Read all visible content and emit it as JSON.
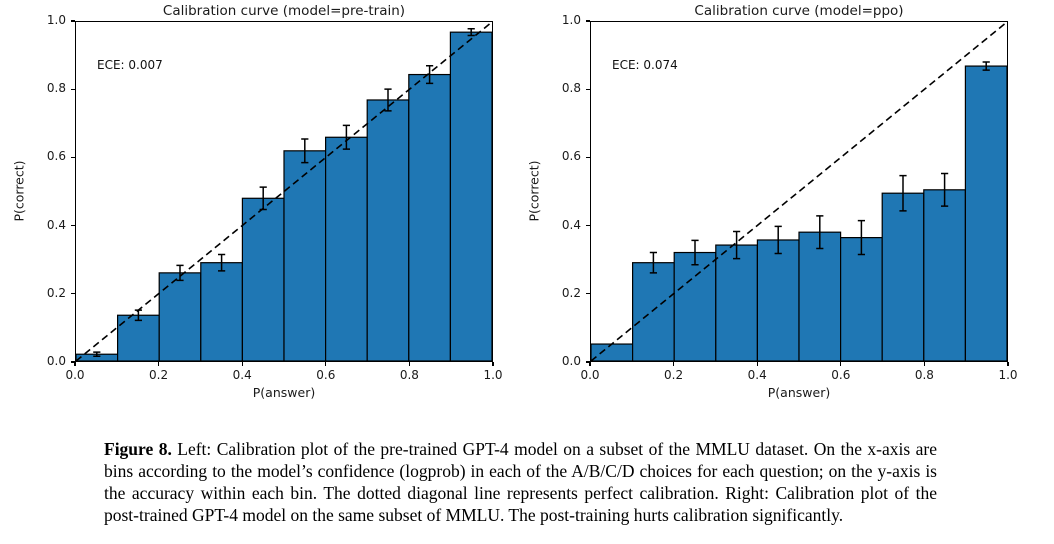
{
  "chart_data": [
    {
      "type": "bar",
      "title": "Calibration curve (model=pre-train)",
      "annotation": "ECE: 0.007",
      "xlabel": "P(answer)",
      "ylabel": "P(correct)",
      "xlim": [
        0.0,
        1.0
      ],
      "ylim": [
        0.0,
        1.0
      ],
      "xticks": [
        "0.0",
        "0.2",
        "0.4",
        "0.6",
        "0.8",
        "1.0"
      ],
      "yticks": [
        "0.0",
        "0.2",
        "0.4",
        "0.6",
        "0.8",
        "1.0"
      ],
      "bin_edges": [
        0.0,
        0.1,
        0.2,
        0.3,
        0.4,
        0.5,
        0.6,
        0.7,
        0.8,
        0.9,
        1.0
      ],
      "values": [
        0.02,
        0.135,
        0.26,
        0.29,
        0.48,
        0.62,
        0.66,
        0.77,
        0.845,
        0.97
      ],
      "errors": [
        0.006,
        0.015,
        0.022,
        0.024,
        0.033,
        0.035,
        0.035,
        0.032,
        0.026,
        0.01
      ],
      "bar_color": "#1f77b4",
      "edge_color": "#000000",
      "diagonal_line": "dashed, from (0,0) to (1,1), perfect calibration reference",
      "grid": false,
      "legend": null
    },
    {
      "type": "bar",
      "title": "Calibration curve (model=ppo)",
      "annotation": "ECE: 0.074",
      "xlabel": "P(answer)",
      "ylabel": "P(correct)",
      "xlim": [
        0.0,
        1.0
      ],
      "ylim": [
        0.0,
        1.0
      ],
      "xticks": [
        "0.0",
        "0.2",
        "0.4",
        "0.6",
        "0.8",
        "1.0"
      ],
      "yticks": [
        "0.0",
        "0.2",
        "0.4",
        "0.6",
        "0.8",
        "1.0"
      ],
      "bin_edges": [
        0.0,
        0.1,
        0.2,
        0.3,
        0.4,
        0.5,
        0.6,
        0.7,
        0.8,
        0.9,
        1.0
      ],
      "values": [
        0.05,
        0.29,
        0.32,
        0.342,
        0.357,
        0.38,
        0.364,
        0.495,
        0.505,
        0.87
      ],
      "errors": [
        0,
        0.03,
        0.036,
        0.04,
        0.04,
        0.048,
        0.05,
        0.052,
        0.048,
        0.012
      ],
      "bar_color": "#1f77b4",
      "edge_color": "#000000",
      "diagonal_line": "dashed, from (0,0) to (1,1), perfect calibration reference",
      "grid": false,
      "legend": null
    }
  ],
  "caption": {
    "label": "Figure 8.",
    "body": " Left: Calibration plot of the pre-trained GPT-4 model on a subset of the MMLU dataset. On the x-axis are bins according to the model’s confidence (logprob) in each of the A/B/C/D choices for each question; on the y-axis is the accuracy within each bin. The dotted diagonal line represents perfect calibration. Right: Calibration plot of the post-trained GPT-4 model on the same subset of MMLU. The post-training hurts calibration significantly."
  }
}
